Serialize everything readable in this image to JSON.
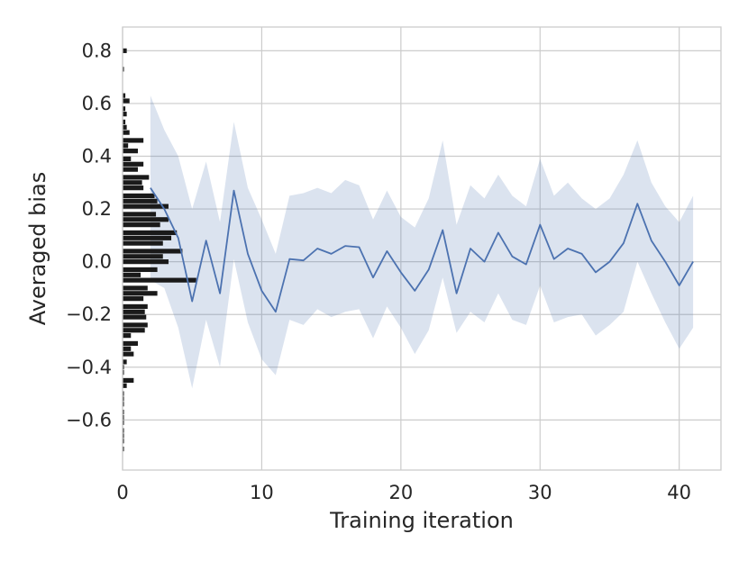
{
  "chart_data": {
    "type": "line",
    "title": "",
    "xlabel": "Training iteration",
    "ylabel": "Averaged bias",
    "xlim": [
      0,
      43
    ],
    "ylim": [
      -0.79,
      0.89
    ],
    "x_ticks": [
      0,
      10,
      20,
      30,
      40
    ],
    "x_tick_labels": [
      "0",
      "10",
      "20",
      "30",
      "40"
    ],
    "y_ticks": [
      0.8,
      0.6,
      0.4,
      0.2,
      0.0,
      -0.2,
      -0.4,
      -0.6
    ],
    "y_tick_labels": [
      "0.8",
      "0.6",
      "0.4",
      "0.2",
      "0.0",
      "−0.2",
      "−0.4",
      "−0.6"
    ],
    "grid": true,
    "colors": {
      "line": "#4c72b0",
      "band": "#4c72b0",
      "histogram": "#1a1a1a"
    },
    "series": [
      {
        "type": "line",
        "x": [
          2,
          3,
          4,
          5,
          6,
          7,
          8,
          9,
          10,
          11,
          12,
          13,
          14,
          15,
          16,
          17,
          18,
          19,
          20,
          21,
          22,
          23,
          24,
          25,
          26,
          27,
          28,
          29,
          30,
          31,
          32,
          33,
          34,
          35,
          36,
          37,
          38,
          39,
          40,
          41
        ],
        "y": [
          0.28,
          0.2,
          0.09,
          -0.15,
          0.08,
          -0.12,
          0.27,
          0.03,
          -0.11,
          -0.19,
          0.01,
          0.005,
          0.05,
          0.03,
          0.06,
          0.055,
          -0.06,
          0.04,
          -0.04,
          -0.11,
          -0.03,
          0.12,
          -0.12,
          0.05,
          0.0,
          0.11,
          0.02,
          -0.01,
          0.14,
          0.01,
          0.05,
          0.03,
          -0.04,
          0.0,
          0.07,
          0.22,
          0.08,
          0.0,
          -0.09,
          0.0
        ]
      },
      {
        "type": "band",
        "x": [
          2,
          3,
          4,
          5,
          6,
          7,
          8,
          9,
          10,
          11,
          12,
          13,
          14,
          15,
          16,
          17,
          18,
          19,
          20,
          21,
          22,
          23,
          24,
          25,
          26,
          27,
          28,
          29,
          30,
          31,
          32,
          33,
          34,
          35,
          36,
          37,
          38,
          39,
          40,
          41
        ],
        "upper": [
          0.63,
          0.5,
          0.4,
          0.2,
          0.38,
          0.15,
          0.53,
          0.28,
          0.16,
          0.03,
          0.25,
          0.26,
          0.28,
          0.26,
          0.31,
          0.29,
          0.16,
          0.27,
          0.17,
          0.13,
          0.24,
          0.46,
          0.14,
          0.29,
          0.24,
          0.33,
          0.25,
          0.21,
          0.39,
          0.25,
          0.3,
          0.24,
          0.2,
          0.24,
          0.33,
          0.46,
          0.3,
          0.21,
          0.15,
          0.25
        ],
        "lower": [
          -0.07,
          -0.1,
          -0.25,
          -0.48,
          -0.22,
          -0.4,
          0.01,
          -0.23,
          -0.37,
          -0.43,
          -0.22,
          -0.24,
          -0.18,
          -0.21,
          -0.19,
          -0.18,
          -0.29,
          -0.17,
          -0.25,
          -0.35,
          -0.26,
          -0.06,
          -0.27,
          -0.19,
          -0.23,
          -0.12,
          -0.22,
          -0.24,
          -0.09,
          -0.23,
          -0.21,
          -0.2,
          -0.28,
          -0.24,
          -0.19,
          0.0,
          -0.12,
          -0.23,
          -0.33,
          -0.25
        ]
      },
      {
        "type": "histogram-horizontal",
        "y_centers": [
          0.8,
          0.73,
          0.63,
          0.61,
          0.58,
          0.56,
          0.53,
          0.51,
          0.49,
          0.46,
          0.44,
          0.42,
          0.39,
          0.37,
          0.35,
          0.32,
          0.3,
          0.28,
          0.25,
          0.23,
          0.21,
          0.18,
          0.16,
          0.14,
          0.11,
          0.09,
          0.07,
          0.04,
          0.02,
          0.0,
          -0.03,
          -0.05,
          -0.07,
          -0.1,
          -0.12,
          -0.14,
          -0.17,
          -0.19,
          -0.21,
          -0.24,
          -0.26,
          -0.28,
          -0.31,
          -0.33,
          -0.35,
          -0.38,
          -0.4,
          -0.42,
          -0.45,
          -0.47,
          -0.5,
          -0.52,
          -0.54,
          -0.57,
          -0.59,
          -0.61,
          -0.64,
          -0.66,
          -0.68,
          -0.71
        ],
        "counts": [
          0.3,
          0.1,
          0.2,
          0.5,
          0.2,
          0.3,
          0.2,
          0.3,
          0.5,
          1.5,
          0.4,
          1.1,
          0.6,
          1.5,
          1.1,
          1.9,
          1.4,
          1.5,
          2.3,
          2.5,
          3.3,
          2.4,
          3.3,
          2.7,
          3.9,
          3.5,
          2.9,
          4.3,
          2.9,
          3.3,
          2.5,
          1.3,
          5.3,
          1.8,
          2.5,
          1.5,
          1.8,
          1.6,
          1.7,
          1.8,
          1.6,
          0.6,
          1.1,
          0.6,
          0.8,
          0.3,
          0.1,
          0.1,
          0.8,
          0.3,
          0.1,
          0.1,
          0.1,
          0.1,
          0.1,
          0.1,
          0.1,
          0.1,
          0.1,
          0.1
        ]
      }
    ]
  }
}
